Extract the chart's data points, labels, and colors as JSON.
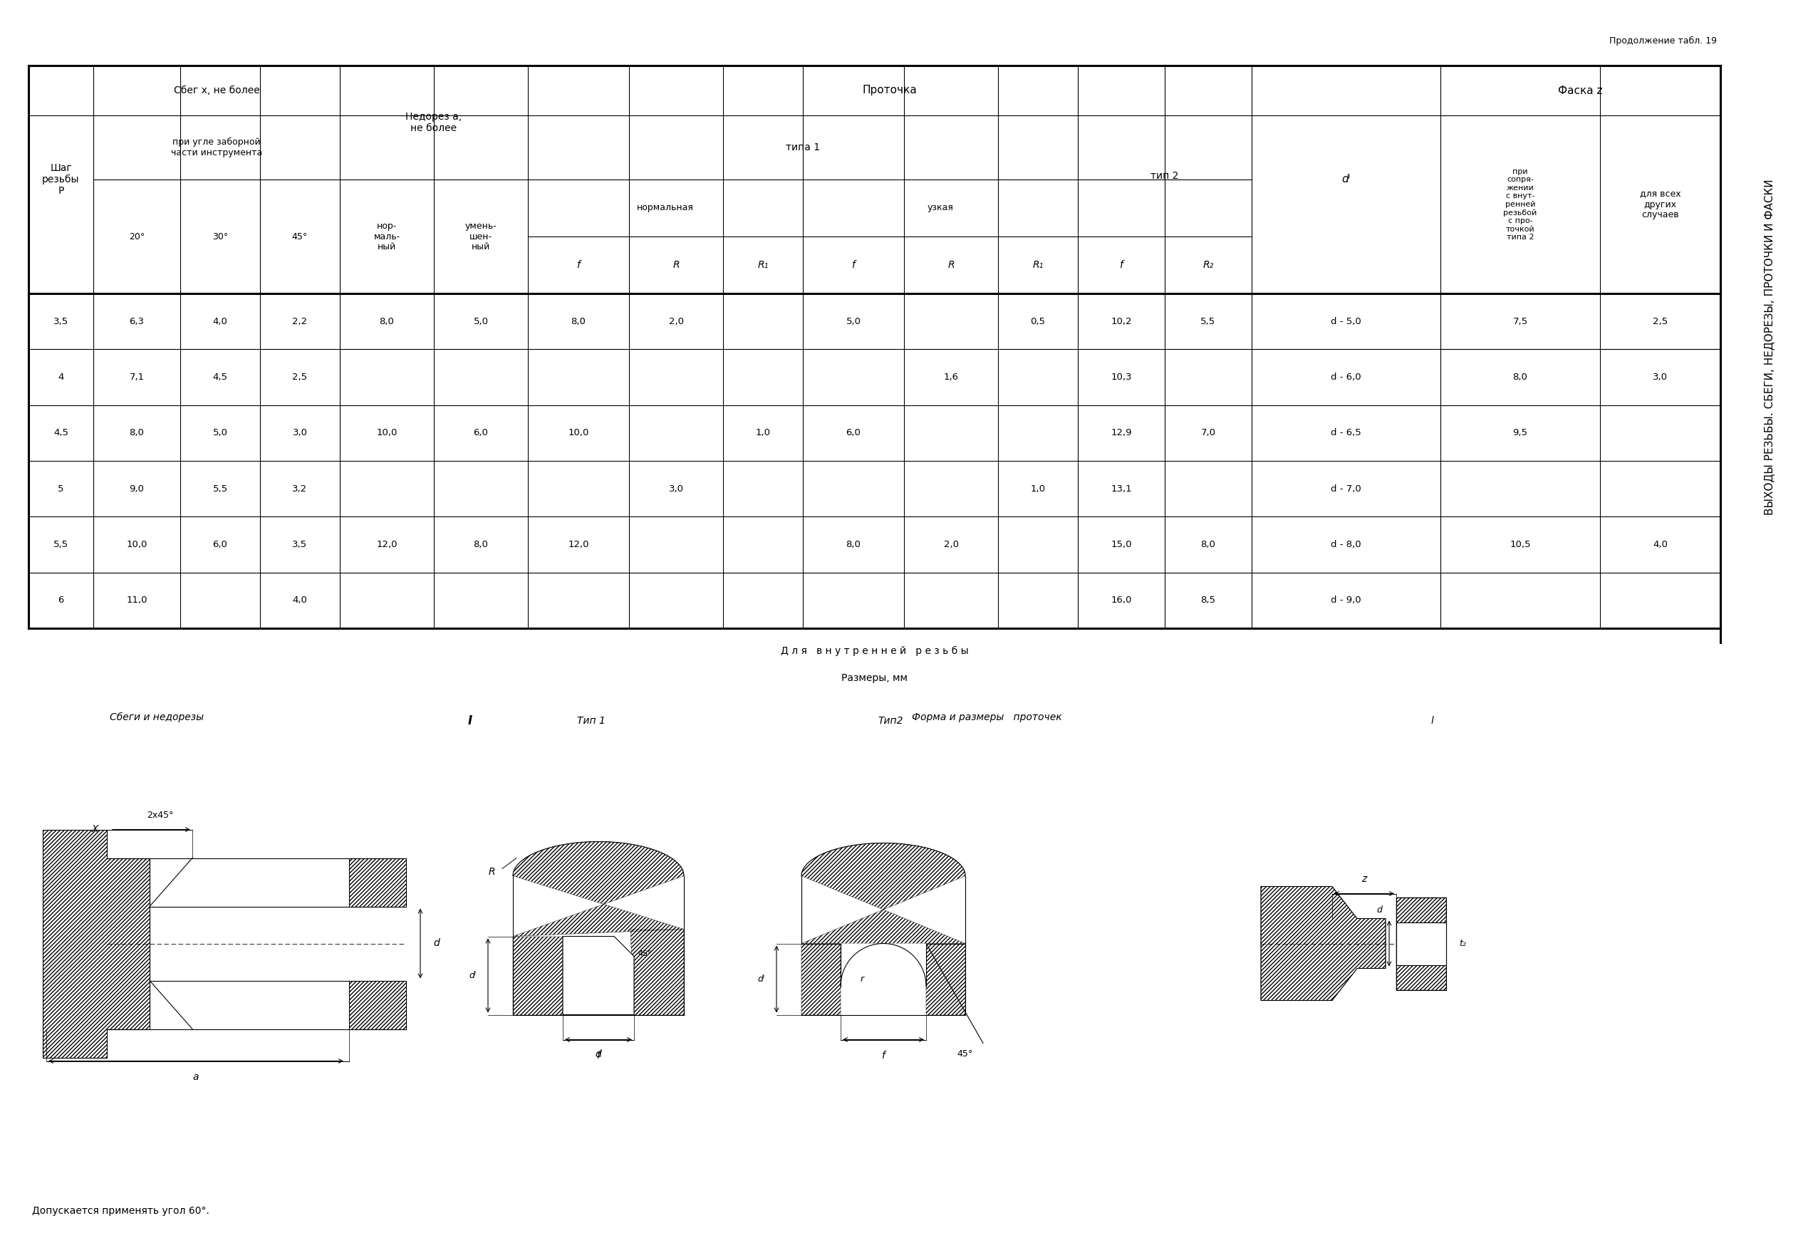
{
  "title_continuation": "Продолжение табл. 19",
  "subtitle_internal": "Д л я   в н у т р е н н е й   р е з ь б ы",
  "subtitle_sizes": "Размеры, мм",
  "note": "Допускается применять угол 60°.",
  "sidebar_text": "ВЫХОДЫ РЕЗЬБЫ. СБЕГИ, НЕДОРЕЗЫ, ПРОТОЧКИ И ФАСКИ",
  "table_data": [
    [
      "3,5",
      "6,3",
      "4,0",
      "2,2",
      "8,0",
      "5,0",
      "8,0",
      "2,0",
      "",
      "5,0",
      "",
      "0,5",
      "10,2",
      "5,5",
      "d - 5,0",
      "7,5",
      "2,5"
    ],
    [
      "4",
      "7,1",
      "4,5",
      "2,5",
      "",
      "",
      "",
      "",
      "",
      "",
      "1,6",
      "",
      "10,3",
      "",
      "d - 6,0",
      "8,0",
      "3,0"
    ],
    [
      "4,5",
      "8,0",
      "5,0",
      "3,0",
      "10,0",
      "6,0",
      "10,0",
      "",
      "1,0",
      "6,0",
      "",
      "",
      "12,9",
      "7,0",
      "d - 6,5",
      "9,5",
      ""
    ],
    [
      "5",
      "9,0",
      "5,5",
      "3,2",
      "",
      "",
      "",
      "3,0",
      "",
      "",
      "",
      "1,0",
      "13,1",
      "",
      "d - 7,0",
      "",
      ""
    ],
    [
      "5,5",
      "10,0",
      "6,0",
      "3,5",
      "12,0",
      "8,0",
      "12,0",
      "",
      "",
      "8,0",
      "2,0",
      "",
      "15,0",
      "8,0",
      "d - 8,0",
      "10,5",
      "4,0"
    ],
    [
      "6",
      "11,0",
      "",
      "4,0",
      "",
      "",
      "",
      "",
      "",
      "",
      "",
      "",
      "16,0",
      "8,5",
      "d - 9,0",
      "",
      ""
    ]
  ],
  "background_color": "#ffffff",
  "line_color": "#000000",
  "text_color": "#000000"
}
